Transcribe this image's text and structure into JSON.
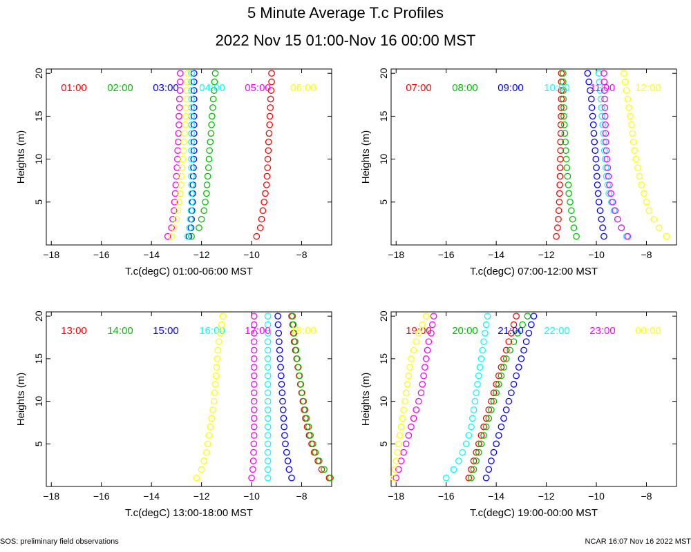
{
  "header": {
    "title": "5 Minute Average T.c Profiles",
    "subtitle": "2022 Nov 15 01:00-Nov 16 00:00 MST"
  },
  "footer": {
    "left": "SOS: preliminary field observations",
    "right": "NCAR 16:07 Nov 16 2022 MST"
  },
  "colors": {
    "red": "#ff0000",
    "green": "#00c000",
    "blue": "#0000ff",
    "cyan": "#00ffff",
    "magenta": "#ff00ff",
    "yellow": "#ffff00"
  },
  "chart_data": [
    {
      "type": "scatter",
      "xlabel": "T.c(degC) 01:00-06:00 MST",
      "ylabel": "Heights (m)",
      "xlim": [
        -18.2,
        -6.8
      ],
      "ylim": [
        0,
        20.5
      ],
      "xticks": [
        -18,
        -16,
        -14,
        -12,
        -10,
        -8
      ],
      "yticks": [
        5,
        10,
        15,
        20
      ],
      "heights": [
        1,
        2,
        3,
        4,
        5,
        6,
        7,
        8,
        9,
        10,
        11,
        12,
        13,
        14,
        15,
        16,
        17,
        18,
        19,
        20
      ],
      "series": [
        {
          "name": "01:00",
          "color": "red",
          "x": [
            -9.8,
            -9.65,
            -9.6,
            -9.55,
            -9.5,
            -9.45,
            -9.4,
            -9.38,
            -9.36,
            -9.35,
            -9.33,
            -9.32,
            -9.3,
            -9.28,
            -9.27,
            -9.25,
            -9.24,
            -9.22,
            -9.2,
            -9.2
          ]
        },
        {
          "name": "02:00",
          "color": "green",
          "x": [
            -12.4,
            -12.1,
            -12.0,
            -11.9,
            -11.85,
            -11.8,
            -11.78,
            -11.75,
            -11.72,
            -11.7,
            -11.68,
            -11.65,
            -11.62,
            -11.6,
            -11.58,
            -11.55,
            -11.53,
            -11.5,
            -11.48,
            -11.45
          ]
        },
        {
          "name": "03:00",
          "color": "blue",
          "x": [
            -12.5,
            -12.42,
            -12.4,
            -12.38,
            -12.36,
            -12.35,
            -12.34,
            -12.33,
            -12.32,
            -12.31,
            -12.3,
            -12.3,
            -12.3,
            -12.3,
            -12.3,
            -12.3,
            -12.3,
            -12.3,
            -12.3,
            -12.3
          ]
        },
        {
          "name": "04:00",
          "color": "cyan",
          "x": [
            -12.55,
            -12.48,
            -12.45,
            -12.42,
            -12.4,
            -12.4,
            -12.4,
            -12.4,
            -12.4,
            -12.4,
            -12.4,
            -12.4,
            -12.4,
            -12.4,
            -12.4,
            -12.4,
            -12.4,
            -12.4,
            -12.4,
            -12.4
          ]
        },
        {
          "name": "05:00",
          "color": "magenta",
          "x": [
            -13.35,
            -13.2,
            -13.15,
            -13.1,
            -13.08,
            -13.05,
            -13.03,
            -13.0,
            -12.98,
            -12.96,
            -12.95,
            -12.93,
            -12.92,
            -12.9,
            -12.9,
            -12.88,
            -12.88,
            -12.86,
            -12.85,
            -12.85
          ]
        },
        {
          "name": "06:00",
          "color": "yellow",
          "x": [
            -13.2,
            -13.1,
            -13.0,
            -12.95,
            -12.9,
            -12.85,
            -12.82,
            -12.8,
            -12.78,
            -12.75,
            -12.72,
            -12.7,
            -12.68,
            -12.65,
            -12.63,
            -12.62,
            -12.6,
            -12.6,
            -12.58,
            -12.55
          ]
        }
      ]
    },
    {
      "type": "scatter",
      "xlabel": "T.c(degC) 07:00-12:00 MST",
      "ylabel": "Heights (m)",
      "xlim": [
        -18.2,
        -6.8
      ],
      "ylim": [
        0,
        20.5
      ],
      "xticks": [
        -18,
        -16,
        -14,
        -12,
        -10,
        -8
      ],
      "yticks": [
        5,
        10,
        15,
        20
      ],
      "heights": [
        1,
        2,
        3,
        4,
        5,
        6,
        7,
        8,
        9,
        10,
        11,
        12,
        13,
        14,
        15,
        16,
        17,
        18,
        19,
        20
      ],
      "series": [
        {
          "name": "07:00",
          "color": "red",
          "x": [
            -11.6,
            -11.55,
            -11.52,
            -11.5,
            -11.48,
            -11.47,
            -11.46,
            -11.45,
            -11.45,
            -11.44,
            -11.43,
            -11.43,
            -11.42,
            -11.42,
            -11.41,
            -11.41,
            -11.4,
            -11.4,
            -11.4,
            -11.4
          ]
        },
        {
          "name": "08:00",
          "color": "green",
          "x": [
            -10.8,
            -10.9,
            -10.95,
            -11.0,
            -11.05,
            -11.1,
            -11.12,
            -11.15,
            -11.18,
            -11.2,
            -11.22,
            -11.24,
            -11.26,
            -11.28,
            -11.3,
            -11.3,
            -11.32,
            -11.32,
            -11.33,
            -11.33
          ]
        },
        {
          "name": "09:00",
          "color": "blue",
          "x": [
            -9.7,
            -9.75,
            -9.8,
            -9.85,
            -9.9,
            -9.93,
            -9.96,
            -9.98,
            -10.0,
            -10.02,
            -10.05,
            -10.08,
            -10.1,
            -10.12,
            -10.15,
            -10.18,
            -10.2,
            -10.25,
            -10.3,
            -10.35
          ]
        },
        {
          "name": "10:00",
          "color": "cyan",
          "x": [
            -8.8,
            -9.0,
            -9.15,
            -9.3,
            -9.4,
            -9.5,
            -9.55,
            -9.6,
            -9.62,
            -9.65,
            -9.68,
            -9.7,
            -9.72,
            -9.75,
            -9.78,
            -9.8,
            -9.82,
            -9.85,
            -9.88,
            -9.9
          ]
        },
        {
          "name": "11:00",
          "color": "magenta",
          "x": [
            -8.75,
            -9.0,
            -9.15,
            -9.25,
            -9.35,
            -9.42,
            -9.48,
            -9.52,
            -9.55,
            -9.58,
            -9.6,
            -9.62,
            -9.63,
            -9.64,
            -9.65,
            -9.66,
            -9.67,
            -9.68,
            -9.69,
            -9.7
          ]
        },
        {
          "name": "12:00",
          "color": "yellow",
          "x": [
            -7.2,
            -7.5,
            -7.7,
            -7.9,
            -8.0,
            -8.1,
            -8.2,
            -8.28,
            -8.35,
            -8.42,
            -8.48,
            -8.52,
            -8.56,
            -8.6,
            -8.65,
            -8.7,
            -8.75,
            -8.8,
            -8.85,
            -8.9
          ]
        }
      ]
    },
    {
      "type": "scatter",
      "xlabel": "T.c(degC) 13:00-18:00 MST",
      "ylabel": "Heights (m)",
      "xlim": [
        -18.2,
        -6.8
      ],
      "ylim": [
        0,
        20.5
      ],
      "xticks": [
        -18,
        -16,
        -14,
        -12,
        -10,
        -8
      ],
      "yticks": [
        5,
        10,
        15,
        20
      ],
      "heights": [
        1,
        2,
        3,
        4,
        5,
        6,
        7,
        8,
        9,
        10,
        11,
        12,
        13,
        14,
        15,
        16,
        17,
        18,
        19,
        20
      ],
      "series": [
        {
          "name": "13:00",
          "color": "red",
          "x": [
            -6.9,
            -7.2,
            -7.35,
            -7.5,
            -7.6,
            -7.7,
            -7.78,
            -7.85,
            -7.9,
            -7.95,
            -8.0,
            -8.05,
            -8.1,
            -8.15,
            -8.2,
            -8.25,
            -8.3,
            -8.33,
            -8.36,
            -8.4
          ]
        },
        {
          "name": "14:00",
          "color": "green",
          "x": [
            -6.85,
            -7.1,
            -7.3,
            -7.45,
            -7.55,
            -7.65,
            -7.72,
            -7.8,
            -7.86,
            -7.92,
            -7.98,
            -8.03,
            -8.08,
            -8.13,
            -8.18,
            -8.22,
            -8.26,
            -8.3,
            -8.33,
            -8.36
          ]
        },
        {
          "name": "15:00",
          "color": "blue",
          "x": [
            -8.4,
            -8.5,
            -8.55,
            -8.6,
            -8.65,
            -8.68,
            -8.7,
            -8.72,
            -8.74,
            -8.76,
            -8.78,
            -8.8,
            -8.82,
            -8.84,
            -8.86,
            -8.88,
            -8.9,
            -8.92,
            -8.94,
            -8.95
          ]
        },
        {
          "name": "16:00",
          "color": "cyan",
          "x": [
            -9.35,
            -9.35,
            -9.35,
            -9.35,
            -9.35,
            -9.35,
            -9.35,
            -9.35,
            -9.35,
            -9.35,
            -9.35,
            -9.35,
            -9.35,
            -9.35,
            -9.35,
            -9.35,
            -9.35,
            -9.35,
            -9.35,
            -9.35
          ]
        },
        {
          "name": "17:00",
          "color": "magenta",
          "x": [
            -10.0,
            -9.95,
            -9.93,
            -9.92,
            -9.91,
            -9.9,
            -9.9,
            -9.9,
            -9.9,
            -9.9,
            -9.9,
            -9.9,
            -9.9,
            -9.9,
            -9.9,
            -9.9,
            -9.9,
            -9.9,
            -9.9,
            -9.9
          ]
        },
        {
          "name": "18:00",
          "color": "yellow",
          "x": [
            -12.2,
            -12.0,
            -11.9,
            -11.8,
            -11.75,
            -11.7,
            -11.65,
            -11.6,
            -11.55,
            -11.5,
            -11.48,
            -11.45,
            -11.42,
            -11.4,
            -11.37,
            -11.35,
            -11.3,
            -11.25,
            -11.2,
            -11.15
          ]
        }
      ]
    },
    {
      "type": "scatter",
      "xlabel": "T.c(degC) 19:00-00:00 MST",
      "ylabel": "Heights (m)",
      "xlim": [
        -18.2,
        -6.8
      ],
      "ylim": [
        0,
        20.5
      ],
      "xticks": [
        -18,
        -16,
        -14,
        -12,
        -10,
        -8
      ],
      "yticks": [
        5,
        10,
        15,
        20
      ],
      "heights": [
        1,
        2,
        3,
        4,
        5,
        6,
        7,
        8,
        9,
        10,
        11,
        12,
        13,
        14,
        15,
        16,
        17,
        18,
        19,
        20
      ],
      "series": [
        {
          "name": "19:00",
          "color": "red",
          "x": [
            -15.1,
            -15.0,
            -14.9,
            -14.8,
            -14.7,
            -14.6,
            -14.5,
            -14.4,
            -14.3,
            -14.2,
            -14.1,
            -14.0,
            -13.9,
            -13.8,
            -13.7,
            -13.6,
            -13.5,
            -13.4,
            -13.3,
            -13.2
          ]
        },
        {
          "name": "20:00",
          "color": "green",
          "x": [
            -15.0,
            -14.9,
            -14.8,
            -14.7,
            -14.6,
            -14.5,
            -14.4,
            -14.3,
            -14.2,
            -14.1,
            -14.0,
            -13.9,
            -13.8,
            -13.7,
            -13.6,
            -13.45,
            -13.3,
            -13.15,
            -12.95,
            -12.75
          ]
        },
        {
          "name": "21:00",
          "color": "blue",
          "x": [
            -14.4,
            -14.3,
            -14.2,
            -14.1,
            -14.0,
            -13.9,
            -13.8,
            -13.7,
            -13.6,
            -13.5,
            -13.4,
            -13.3,
            -13.2,
            -13.1,
            -13.0,
            -12.9,
            -12.8,
            -12.7,
            -12.6,
            -12.5
          ]
        },
        {
          "name": "22:00",
          "color": "cyan",
          "x": [
            -16.0,
            -15.7,
            -15.5,
            -15.35,
            -15.2,
            -15.1,
            -15.0,
            -14.95,
            -14.9,
            -14.85,
            -14.8,
            -14.75,
            -14.7,
            -14.65,
            -14.6,
            -14.55,
            -14.5,
            -14.45,
            -14.4,
            -14.35
          ]
        },
        {
          "name": "23:00",
          "color": "magenta",
          "x": [
            -18.0,
            -17.9,
            -17.8,
            -17.7,
            -17.6,
            -17.5,
            -17.4,
            -17.3,
            -17.2,
            -17.1,
            -17.0,
            -16.95,
            -16.9,
            -16.85,
            -16.8,
            -16.75,
            -16.7,
            -16.6,
            -16.55,
            -16.5
          ]
        },
        {
          "name": "00:00",
          "color": "yellow",
          "x": [
            -18.1,
            -18.05,
            -18.0,
            -17.95,
            -17.9,
            -17.85,
            -17.8,
            -17.75,
            -17.7,
            -17.65,
            -17.6,
            -17.55,
            -17.5,
            -17.45,
            -17.4,
            -17.3,
            -17.2,
            -17.1,
            -16.95,
            -16.8
          ]
        }
      ]
    }
  ]
}
